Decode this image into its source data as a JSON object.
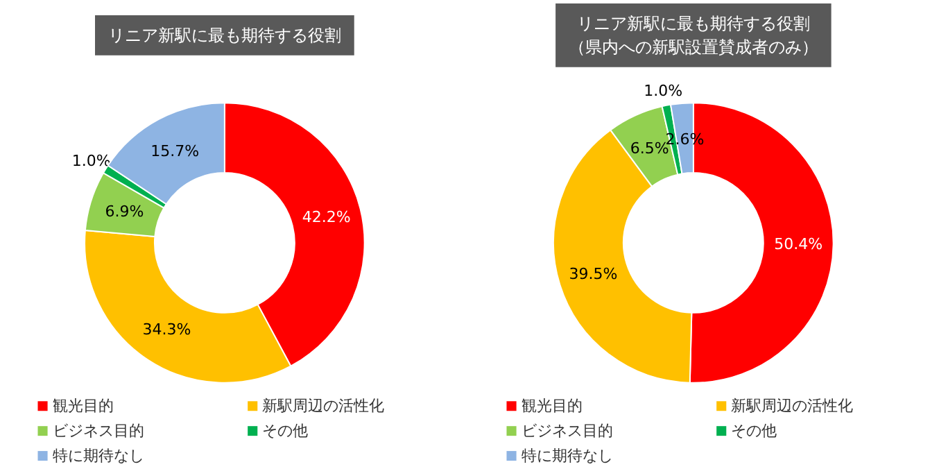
{
  "chart_data": [
    {
      "type": "donut",
      "title": "リニア新駅に最も期待する役割",
      "categories": [
        "観光目的",
        "新駅周辺の活性化",
        "ビジネス目的",
        "その他",
        "特に期待なし"
      ],
      "values": [
        42.2,
        34.3,
        6.9,
        1.0,
        15.7
      ],
      "colors": [
        "#ff0000",
        "#ffc000",
        "#92d050",
        "#00b050",
        "#8eb4e3"
      ],
      "value_labels": [
        "42.2%",
        "34.3%",
        "6.9%",
        "1.0%",
        "15.7%"
      ],
      "legend": "bottom"
    },
    {
      "type": "donut",
      "title": "リニア新駅に最も期待する役割（県内への新駅設置賛成者のみ）",
      "categories": [
        "観光目的",
        "新駅周辺の活性化",
        "ビジネス目的",
        "その他",
        "特に期待なし"
      ],
      "values": [
        50.4,
        39.5,
        6.5,
        1.0,
        2.6
      ],
      "colors": [
        "#ff0000",
        "#ffc000",
        "#92d050",
        "#00b050",
        "#8eb4e3"
      ],
      "value_labels": [
        "50.4%",
        "39.5%",
        "6.5%",
        "1.0%",
        "2.6%"
      ],
      "legend": "bottom"
    }
  ]
}
